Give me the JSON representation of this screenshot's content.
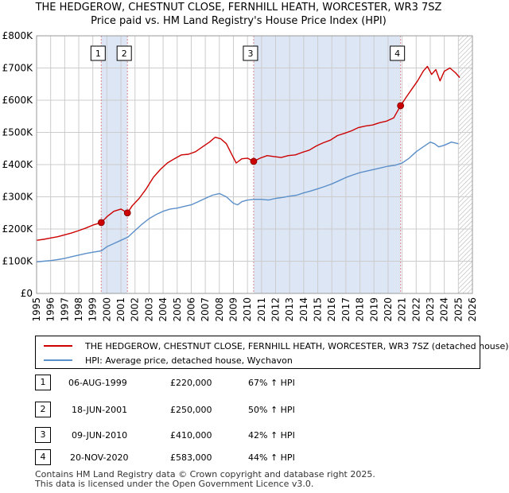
{
  "header": {
    "title_line1": "THE HEDGEROW, CHESTNUT CLOSE, FERNHILL HEATH, WORCESTER, WR3 7SZ",
    "title_line2": "Price paid vs. HM Land Registry's House Price Index (HPI)"
  },
  "colors": {
    "property": "#cc0000",
    "hpi": "#5b8fc9",
    "shade": "#dde6f5",
    "grid": "#cccccc",
    "marker_line": "#dd8888"
  },
  "chart_data": {
    "type": "line",
    "title": "THE HEDGEROW, CHESTNUT CLOSE, FERNHILL HEATH, WORCESTER, WR3 7SZ - Price paid vs. HM Land Registry's House Price Index (HPI)",
    "xlabel": "",
    "ylabel": "",
    "xlim": [
      1995,
      2026
    ],
    "ylim": [
      0,
      800000
    ],
    "grid": true,
    "x_ticks": [
      "1995",
      "1996",
      "1997",
      "1998",
      "1999",
      "2000",
      "2001",
      "2002",
      "2003",
      "2004",
      "2005",
      "2006",
      "2007",
      "2008",
      "2009",
      "2010",
      "2011",
      "2012",
      "2013",
      "2014",
      "2015",
      "2016",
      "2017",
      "2018",
      "2019",
      "2020",
      "2021",
      "2022",
      "2023",
      "2024",
      "2025",
      "2026"
    ],
    "y_ticks": [
      {
        "value": 0,
        "label": "£0"
      },
      {
        "value": 100000,
        "label": "£100K"
      },
      {
        "value": 200000,
        "label": "£200K"
      },
      {
        "value": 300000,
        "label": "£300K"
      },
      {
        "value": 400000,
        "label": "£400K"
      },
      {
        "value": 500000,
        "label": "£500K"
      },
      {
        "value": 600000,
        "label": "£600K"
      },
      {
        "value": 700000,
        "label": "£700K"
      },
      {
        "value": 800000,
        "label": "£800K"
      }
    ],
    "series": [
      {
        "name": "THE HEDGEROW, CHESTNUT CLOSE, FERNHILL HEATH, WORCESTER, WR3 7SZ (detached house)",
        "x": [
          1995,
          1995.5,
          1996,
          1996.5,
          1997,
          1997.5,
          1998,
          1998.5,
          1999,
          1999.6,
          2000,
          2000.5,
          2001,
          2001.46,
          2001.8,
          2002.3,
          2002.8,
          2003.3,
          2003.8,
          2004.3,
          2004.8,
          2005.3,
          2005.8,
          2006.3,
          2006.8,
          2007.3,
          2007.7,
          2008.1,
          2008.5,
          2008.9,
          2009.2,
          2009.6,
          2010.0,
          2010.44,
          2010.9,
          2011.4,
          2011.9,
          2012.4,
          2012.9,
          2013.4,
          2013.9,
          2014.4,
          2014.9,
          2015.4,
          2015.9,
          2016.4,
          2016.9,
          2017.4,
          2017.9,
          2018.4,
          2018.9,
          2019.4,
          2019.9,
          2020.4,
          2020.89,
          2021.3,
          2021.7,
          2022.1,
          2022.5,
          2022.8,
          2023.1,
          2023.4,
          2023.7,
          2024.0,
          2024.4,
          2024.8,
          2025.1
        ],
        "values": [
          165000,
          168000,
          172000,
          176000,
          182000,
          188000,
          195000,
          203000,
          212000,
          220000,
          238000,
          255000,
          262000,
          250000,
          272000,
          295000,
          325000,
          360000,
          385000,
          405000,
          418000,
          430000,
          432000,
          440000,
          455000,
          470000,
          485000,
          480000,
          465000,
          430000,
          405000,
          418000,
          420000,
          410000,
          420000,
          428000,
          425000,
          422000,
          428000,
          430000,
          438000,
          445000,
          458000,
          468000,
          476000,
          490000,
          497000,
          505000,
          515000,
          520000,
          523000,
          530000,
          535000,
          545000,
          583000,
          610000,
          635000,
          660000,
          690000,
          705000,
          680000,
          695000,
          660000,
          690000,
          700000,
          685000,
          670000
        ]
      },
      {
        "name": "HPI: Average price, detached house, Wychavon",
        "x": [
          1995,
          1995.5,
          1996,
          1996.5,
          1997,
          1997.5,
          1998,
          1998.5,
          1999,
          1999.6,
          2000,
          2000.5,
          2001,
          2001.5,
          2002,
          2002.5,
          2003,
          2003.5,
          2004,
          2004.5,
          2005,
          2005.5,
          2006,
          2006.5,
          2007,
          2007.5,
          2008,
          2008.5,
          2009,
          2009.3,
          2009.6,
          2010,
          2010.5,
          2011,
          2011.5,
          2012,
          2012.5,
          2013,
          2013.5,
          2014,
          2014.5,
          2015,
          2015.5,
          2016,
          2016.5,
          2017,
          2017.5,
          2018,
          2018.5,
          2019,
          2019.5,
          2020,
          2020.5,
          2021,
          2021.5,
          2022,
          2022.5,
          2023,
          2023.3,
          2023.6,
          2024,
          2024.5,
          2025
        ],
        "values": [
          98000,
          100000,
          102000,
          105000,
          109000,
          114000,
          119000,
          124000,
          128000,
          132000,
          145000,
          155000,
          165000,
          175000,
          195000,
          215000,
          232000,
          245000,
          255000,
          262000,
          265000,
          270000,
          275000,
          285000,
          295000,
          305000,
          310000,
          300000,
          280000,
          275000,
          285000,
          290000,
          292000,
          292000,
          290000,
          295000,
          298000,
          302000,
          305000,
          312000,
          318000,
          325000,
          332000,
          340000,
          350000,
          360000,
          368000,
          375000,
          380000,
          385000,
          390000,
          395000,
          398000,
          405000,
          420000,
          440000,
          455000,
          470000,
          465000,
          455000,
          460000,
          470000,
          465000
        ]
      }
    ],
    "transactions": [
      {
        "num": "1",
        "x": 1999.6,
        "date": "06-AUG-1999",
        "price": 220000,
        "price_label": "£220,000",
        "hpi": "67% ↑ HPI"
      },
      {
        "num": "2",
        "x": 2001.46,
        "date": "18-JUN-2001",
        "price": 250000,
        "price_label": "£250,000",
        "hpi": "50% ↑ HPI"
      },
      {
        "num": "3",
        "x": 2010.44,
        "date": "09-JUN-2010",
        "price": 410000,
        "price_label": "£410,000",
        "hpi": "42% ↑ HPI"
      },
      {
        "num": "4",
        "x": 2020.89,
        "date": "20-NOV-2020",
        "price": 583000,
        "price_label": "£583,000",
        "hpi": "44% ↑ HPI"
      }
    ],
    "shaded_ranges": [
      [
        1999.6,
        2001.46
      ],
      [
        2010.44,
        2020.89
      ]
    ],
    "hatch_from": 2025.0
  },
  "legend": {
    "property_label": "THE HEDGEROW, CHESTNUT CLOSE, FERNHILL HEATH, WORCESTER, WR3 7SZ (detached house)",
    "hpi_label": "HPI: Average price, detached house, Wychavon"
  },
  "footer": {
    "line1": "Contains HM Land Registry data © Crown copyright and database right 2025.",
    "line2": "This data is licensed under the Open Government Licence v3.0."
  }
}
